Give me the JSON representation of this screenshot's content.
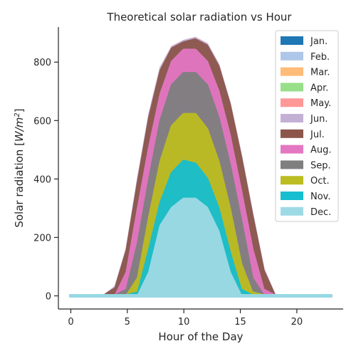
{
  "chart_data": {
    "type": "area",
    "title": "Theoretical solar radiation vs Hour",
    "xlabel": "Hour of the Day",
    "ylabel_prefix": "Solar radiation [",
    "ylabel_unit_base": "W/m",
    "ylabel_unit_exp": "2",
    "ylabel_suffix": "]",
    "xlim": [
      -1.1,
      24.1
    ],
    "ylim": [
      -45,
      920
    ],
    "xticks": [
      0,
      5,
      10,
      15,
      20
    ],
    "yticks": [
      0,
      200,
      400,
      600,
      800
    ],
    "grid": false,
    "legend_position": "top-right",
    "x": [
      0,
      1,
      2,
      3,
      4,
      5,
      6,
      7,
      8,
      9,
      10,
      11,
      12,
      13,
      14,
      15,
      16,
      17,
      18,
      19,
      20,
      21,
      22,
      23
    ],
    "series": [
      {
        "name": "Jan.",
        "color": "#1f77b4",
        "values": [
          0,
          0,
          0,
          0,
          0,
          0,
          0,
          0,
          100,
          230,
          290,
          310,
          290,
          230,
          100,
          0,
          0,
          0,
          0,
          0,
          0,
          0,
          0,
          0
        ]
      },
      {
        "name": "Feb.",
        "color": "#aec7e8",
        "values": [
          0,
          0,
          0,
          0,
          0,
          0,
          0,
          10,
          160,
          300,
          380,
          420,
          380,
          300,
          160,
          10,
          0,
          0,
          0,
          0,
          0,
          0,
          0,
          0
        ]
      },
      {
        "name": "Mar.",
        "color": "#ffbb78",
        "values": [
          0,
          0,
          0,
          0,
          0,
          0,
          20,
          200,
          400,
          560,
          660,
          700,
          660,
          560,
          400,
          200,
          20,
          0,
          0,
          0,
          0,
          0,
          0,
          0
        ]
      },
      {
        "name": "Apr.",
        "color": "#98df8a",
        "values": [
          0,
          0,
          0,
          0,
          0,
          60,
          250,
          460,
          650,
          790,
          860,
          880,
          860,
          790,
          650,
          460,
          250,
          60,
          0,
          0,
          0,
          0,
          0,
          0
        ]
      },
      {
        "name": "May.",
        "color": "#ff9896",
        "values": [
          0,
          0,
          0,
          0,
          20,
          150,
          380,
          590,
          760,
          850,
          870,
          880,
          860,
          790,
          650,
          470,
          260,
          90,
          0,
          0,
          0,
          0,
          0,
          0
        ]
      },
      {
        "name": "Jun.",
        "color": "#c5b0d5",
        "values": [
          0,
          0,
          0,
          0,
          30,
          160,
          400,
          620,
          780,
          850,
          870,
          880,
          860,
          790,
          660,
          480,
          280,
          90,
          0,
          0,
          0,
          0,
          0,
          0
        ]
      },
      {
        "name": "Jul.",
        "color": "#8c564b",
        "values": [
          0,
          0,
          0,
          0,
          25,
          155,
          390,
          610,
          770,
          845,
          865,
          875,
          855,
          785,
          655,
          475,
          275,
          85,
          0,
          0,
          0,
          0,
          0,
          0
        ]
      },
      {
        "name": "Aug.",
        "color": "#e377c2",
        "values": [
          0,
          0,
          0,
          0,
          0,
          80,
          300,
          510,
          690,
          800,
          840,
          840,
          800,
          700,
          550,
          360,
          160,
          20,
          0,
          0,
          0,
          0,
          0,
          0
        ]
      },
      {
        "name": "Sep.",
        "color": "#7f7f7f",
        "values": [
          0,
          0,
          0,
          0,
          0,
          20,
          180,
          400,
          600,
          720,
          760,
          760,
          720,
          610,
          450,
          260,
          60,
          0,
          0,
          0,
          0,
          0,
          0,
          0
        ]
      },
      {
        "name": "Oct.",
        "color": "#bcbd22",
        "values": [
          0,
          0,
          0,
          0,
          0,
          0,
          60,
          270,
          460,
          580,
          620,
          620,
          570,
          460,
          300,
          110,
          10,
          0,
          0,
          0,
          0,
          0,
          0,
          0
        ]
      },
      {
        "name": "Nov.",
        "color": "#17becf",
        "values": [
          0,
          0,
          0,
          0,
          0,
          0,
          10,
          160,
          320,
          420,
          460,
          450,
          400,
          300,
          150,
          20,
          0,
          0,
          0,
          0,
          0,
          0,
          0,
          0
        ]
      },
      {
        "name": "Dec.",
        "color": "#9edae5",
        "values": [
          0,
          0,
          0,
          0,
          0,
          0,
          0,
          80,
          240,
          300,
          330,
          330,
          300,
          220,
          80,
          0,
          0,
          0,
          0,
          0,
          0,
          0,
          0,
          0
        ]
      }
    ]
  }
}
